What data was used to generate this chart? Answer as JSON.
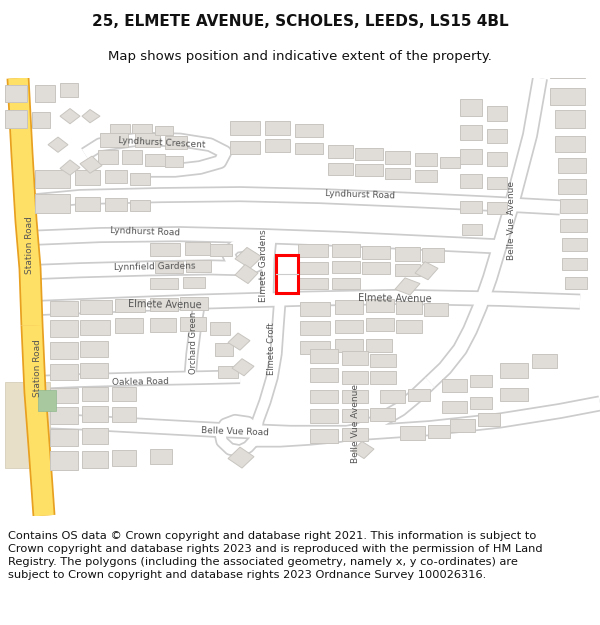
{
  "title_line1": "25, ELMETE AVENUE, SCHOLES, LEEDS, LS15 4BL",
  "title_line2": "Map shows position and indicative extent of the property.",
  "copyright_text": "Contains OS data © Crown copyright and database right 2021. This information is subject to Crown copyright and database rights 2023 and is reproduced with the permission of HM Land Registry. The polygons (including the associated geometry, namely x, y co-ordinates) are subject to Crown copyright and database rights 2023 Ordnance Survey 100026316.",
  "map_bg": "#ffffff",
  "road_color": "#ffffff",
  "road_border": "#cccccc",
  "building_fill": "#e0ddd8",
  "building_edge": "#c8c5c0",
  "highlight_fill": "#ffffff",
  "highlight_edge": "#ff0000",
  "highlight_linewidth": 2.0,
  "station_road_color": "#ffe066",
  "station_road_border": "#e8a020",
  "green_fill": "#a8c8a0",
  "title_fontsize": 11,
  "subtitle_fontsize": 9.5,
  "copyright_fontsize": 8.2,
  "label_color": "#555555",
  "label_fontsize": 6.5
}
